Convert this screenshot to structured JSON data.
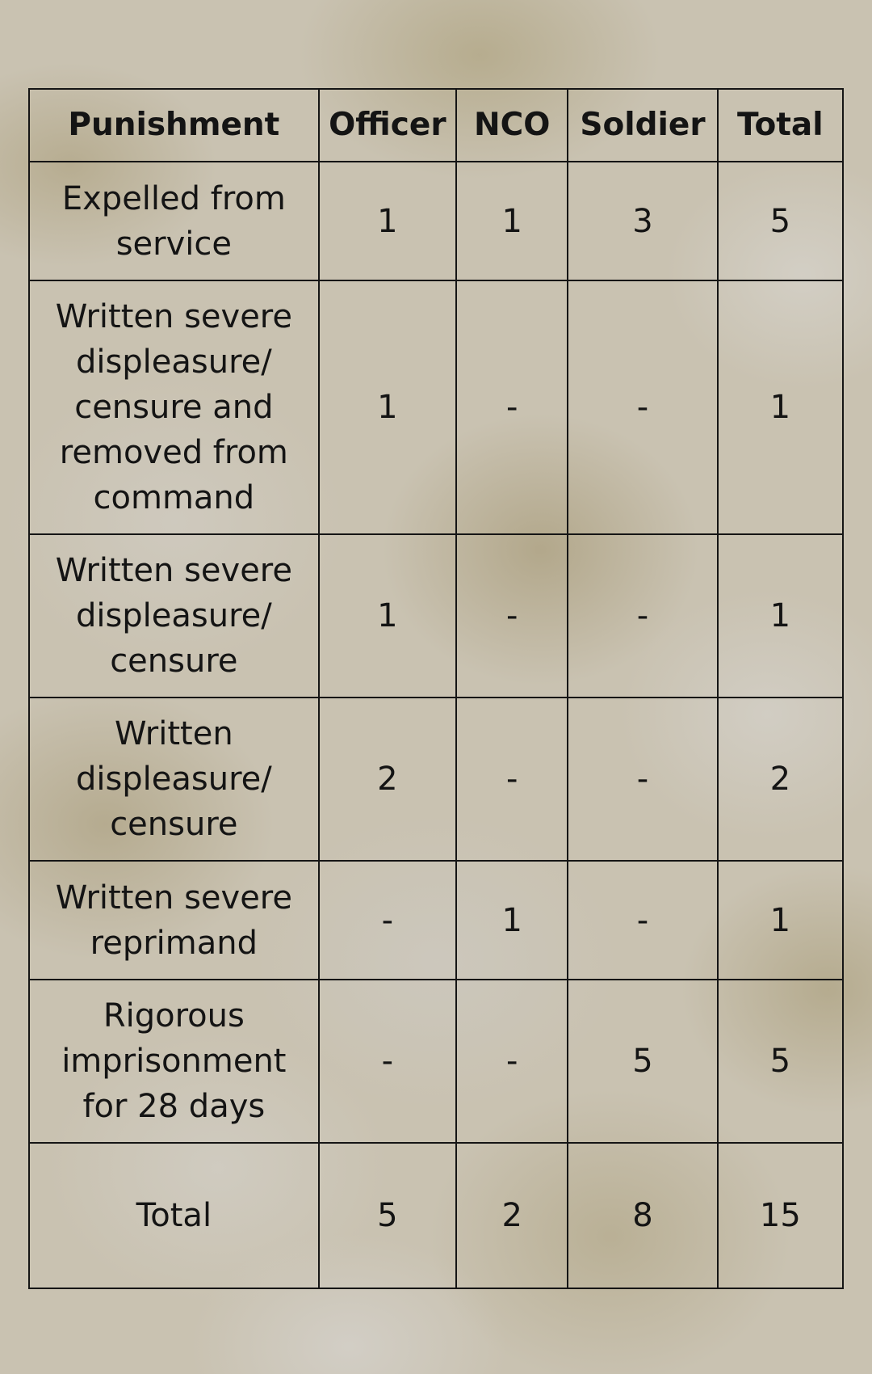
{
  "table": {
    "headers": {
      "punishment": "Punishment",
      "officer": "Officer",
      "nco": "NCO",
      "soldier": "Soldier",
      "total": "Total"
    },
    "rows": [
      {
        "punishment": "Expelled from service",
        "officer": "1",
        "nco": "1",
        "soldier": "3",
        "total": "5"
      },
      {
        "punishment": "Written severe displeasure/ censure and removed from command",
        "officer": "1",
        "nco": "-",
        "soldier": "-",
        "total": "1"
      },
      {
        "punishment": "Written severe displeasure/ censure",
        "officer": "1",
        "nco": "-",
        "soldier": "-",
        "total": "1"
      },
      {
        "punishment": "Written displeasure/ censure",
        "officer": "2",
        "nco": "-",
        "soldier": "-",
        "total": "2"
      },
      {
        "punishment": "Written severe reprimand",
        "officer": "-",
        "nco": "1",
        "soldier": "-",
        "total": "1"
      },
      {
        "punishment": "Rigorous imprisonment for 28 days",
        "officer": "-",
        "nco": "-",
        "soldier": "5",
        "total": "5"
      },
      {
        "punishment": "Total",
        "officer": "5",
        "nco": "2",
        "soldier": "8",
        "total": "15"
      }
    ]
  }
}
